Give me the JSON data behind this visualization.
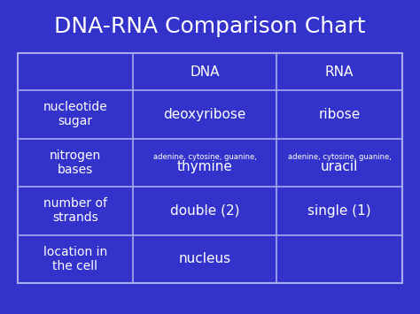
{
  "title": "DNA-RNA Comparison Chart",
  "bg_color": "#3333CC",
  "text_color": "#FFFFFF",
  "border_color": "#AAAAEE",
  "rows": [
    {
      "label": "nucleotide\nsugar",
      "dna": "deoxyribose",
      "dna_small": "",
      "rna": "ribose",
      "rna_small": ""
    },
    {
      "label": "nitrogen\nbases",
      "dna": "thymine",
      "dna_small": "adenine, cytosine, guanine,",
      "rna": "uracil",
      "rna_small": "adenine, cytosine, guanine,"
    },
    {
      "label": "number of\nstrands",
      "dna": "double (2)",
      "dna_small": "",
      "rna": "single (1)",
      "rna_small": ""
    },
    {
      "label": "location in\nthe cell",
      "dna": "nucleus",
      "dna_small": "",
      "rna": "",
      "rna_small": ""
    }
  ],
  "title_fontsize": 18,
  "header_fontsize": 11,
  "label_fontsize": 10,
  "cell_fontsize": 11,
  "small_fontsize": 6
}
